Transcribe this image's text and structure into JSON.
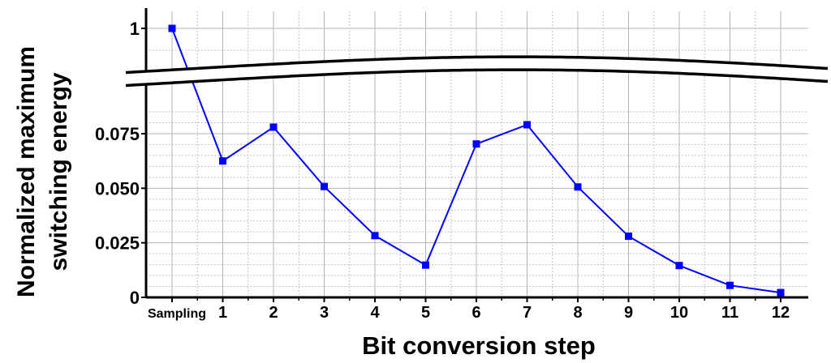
{
  "chart_data": {
    "type": "line",
    "title": "",
    "xlabel": "Bit conversion step",
    "ylabel_lines": [
      "Normalized maximum",
      "switching energy"
    ],
    "categories": [
      "Sampling",
      "1",
      "2",
      "3",
      "4",
      "5",
      "6",
      "7",
      "8",
      "9",
      "10",
      "11",
      "12"
    ],
    "y_ticks": [
      "0",
      "0.025",
      "0.050",
      "0.075",
      "1"
    ],
    "axis_break": true,
    "grid": true,
    "series": [
      {
        "color": "#0000ff",
        "marker": "square",
        "values": [
          1,
          0.0625,
          0.078,
          0.0508,
          0.0283,
          0.0148,
          0.0703,
          0.0791,
          0.0506,
          0.028,
          0.0146,
          0.0055,
          0.0022
        ]
      }
    ]
  }
}
